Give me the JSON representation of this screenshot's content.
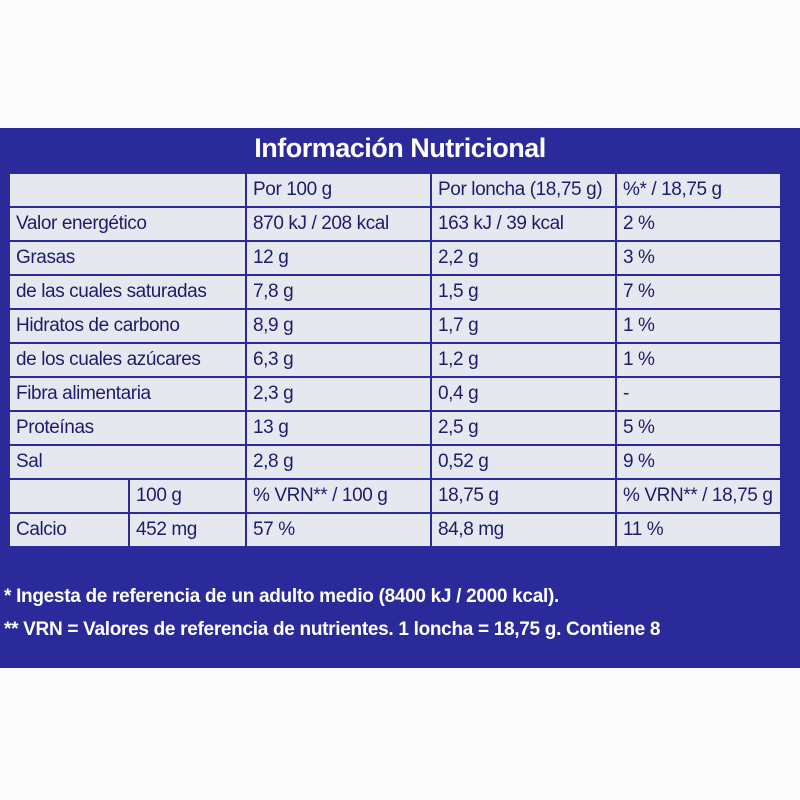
{
  "title": "Información Nutricional",
  "table": {
    "header": [
      "Por 100 g",
      "Por loncha (18,75 g)",
      "%* / 18,75 g"
    ],
    "rows": [
      {
        "label": "Valor energético",
        "cells": [
          "870 kJ / 208 kcal",
          "163 kJ / 39 kcal",
          "2 %"
        ]
      },
      {
        "label": "Grasas",
        "cells": [
          "12 g",
          "2,2 g",
          "3 %"
        ]
      },
      {
        "label": "de las cuales saturadas",
        "cells": [
          "7,8 g",
          "1,5 g",
          "7 %"
        ]
      },
      {
        "label": "Hidratos de carbono",
        "cells": [
          "8,9 g",
          "1,7 g",
          "1 %"
        ]
      },
      {
        "label": "de los cuales azúcares",
        "cells": [
          "6,3 g",
          "1,2 g",
          "1 %"
        ]
      },
      {
        "label": "Fibra alimentaria",
        "cells": [
          "2,3 g",
          "0,4 g",
          "-"
        ]
      },
      {
        "label": "Proteínas",
        "cells": [
          "13 g",
          "2,5 g",
          "5 %"
        ]
      },
      {
        "label": "Sal",
        "cells": [
          "2,8 g",
          "0,52 g",
          "9 %"
        ]
      }
    ],
    "mineral_header": [
      "100 g",
      "% VRN** / 100 g",
      "18,75 g",
      "% VRN** / 18,75 g"
    ],
    "mineral_row": [
      "Calcio",
      "452 mg",
      "57 %",
      "84,8 mg",
      "11 %"
    ]
  },
  "footnotes": [
    "* Ingesta de referencia de un adulto medio (8400 kJ / 2000 kcal).",
    "** VRN = Valores de referencia de nutrientes. 1 loncha = 18,75 g. Contiene 8"
  ]
}
